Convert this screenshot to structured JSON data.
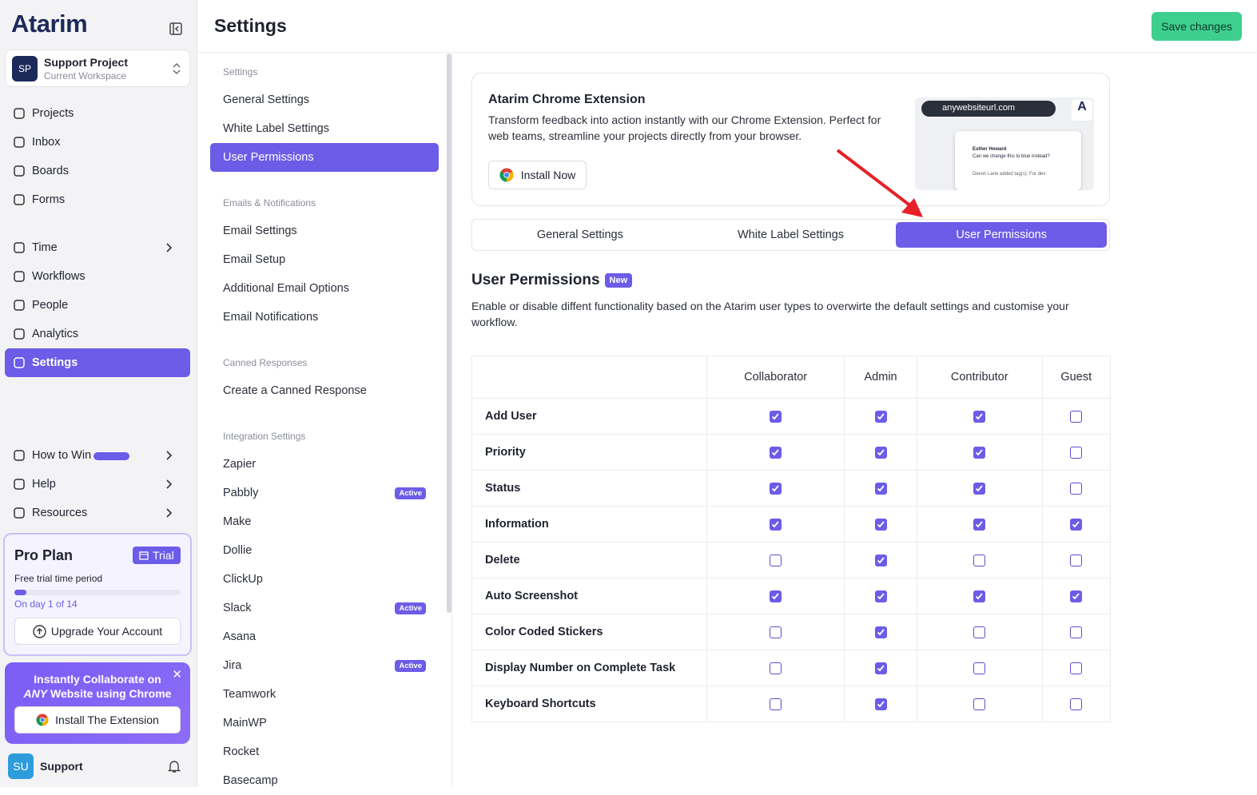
{
  "sidebar": {
    "logo": "Atarim",
    "workspace": {
      "initials": "SP",
      "name": "Support Project",
      "subtitle": "Current Workspace"
    },
    "nav_main": [
      "Projects",
      "Inbox",
      "Boards",
      "Forms"
    ],
    "nav_tools": [
      {
        "label": "Time",
        "arrow": true,
        "active": false
      },
      {
        "label": "Workflows",
        "arrow": false,
        "active": false
      },
      {
        "label": "People",
        "arrow": false,
        "active": false
      },
      {
        "label": "Analytics",
        "arrow": false,
        "active": false
      },
      {
        "label": "Settings",
        "arrow": false,
        "active": true
      }
    ],
    "nav_help": [
      "How to Win",
      "Help",
      "Resources"
    ],
    "plan": {
      "title": "Pro Plan",
      "badge": "Trial",
      "subtitle": "Free trial time period",
      "progress": "On day 1 of 14",
      "button": "Upgrade Your Account"
    },
    "promo": {
      "line1": "Instantly Collaborate on",
      "emphasis": "ANY",
      "line2": "Website using Chrome",
      "button": "Install The Extension"
    },
    "user": {
      "initials": "SU",
      "name": "Support"
    }
  },
  "header": {
    "title": "Settings",
    "button": "Save changes"
  },
  "settings_menu": [
    {
      "heading": "Settings",
      "items": [
        {
          "label": "General Settings"
        },
        {
          "label": "White Label Settings"
        },
        {
          "label": "User Permissions",
          "active": true
        }
      ]
    },
    {
      "heading": "Emails & Notifications",
      "items": [
        {
          "label": "Email Settings"
        },
        {
          "label": "Email Setup"
        },
        {
          "label": "Additional Email Options"
        },
        {
          "label": "Email Notifications"
        }
      ]
    },
    {
      "heading": "Canned Responses",
      "items": [
        {
          "label": "Create a Canned Response"
        }
      ]
    },
    {
      "heading": "Integration Settings",
      "items": [
        {
          "label": "Zapier"
        },
        {
          "label": "Pabbly",
          "badge": "Active"
        },
        {
          "label": "Make"
        },
        {
          "label": "Dollie"
        },
        {
          "label": "ClickUp"
        },
        {
          "label": "Slack",
          "badge": "Active"
        },
        {
          "label": "Asana"
        },
        {
          "label": "Jira",
          "badge": "Active"
        },
        {
          "label": "Teamwork"
        },
        {
          "label": "MainWP"
        },
        {
          "label": "Rocket"
        },
        {
          "label": "Basecamp"
        }
      ]
    }
  ],
  "extension": {
    "title": "Atarim Chrome Extension",
    "text": "Transform feedback into action instantly with our Chrome Extension. Perfect for web teams, streamline your projects directly from your browser.",
    "button": "Install Now",
    "preview": {
      "url": "anywebsiteurl.com",
      "author": "Esther Howard",
      "comment": "Can we change this to blue instead?",
      "activity": "Devon Lane added tag(s): For dev"
    }
  },
  "tabs": [
    {
      "label": "General Settings",
      "active": false
    },
    {
      "label": "White Label Settings",
      "active": false
    },
    {
      "label": "User Permissions",
      "active": true
    }
  ],
  "permissions": {
    "title": "User Permissions",
    "badge": "New",
    "description": "Enable or disable diffent functionality based on the Atarim user types to overwirte the default settings and customise your workflow.",
    "columns": [
      "Collaborator",
      "Admin",
      "Contributor",
      "Guest"
    ],
    "rows": [
      {
        "label": "Add User",
        "checked": [
          true,
          true,
          true,
          false
        ]
      },
      {
        "label": "Priority",
        "checked": [
          true,
          true,
          true,
          false
        ]
      },
      {
        "label": "Status",
        "checked": [
          true,
          true,
          true,
          false
        ]
      },
      {
        "label": "Information",
        "checked": [
          true,
          true,
          true,
          true
        ]
      },
      {
        "label": "Delete",
        "checked": [
          false,
          true,
          false,
          false
        ]
      },
      {
        "label": "Auto Screenshot",
        "checked": [
          true,
          true,
          true,
          true
        ]
      },
      {
        "label": "Color Coded Stickers",
        "checked": [
          false,
          true,
          false,
          false
        ]
      },
      {
        "label": "Display Number on Complete Task",
        "checked": [
          false,
          true,
          false,
          false
        ]
      },
      {
        "label": "Keyboard Shortcuts",
        "checked": [
          false,
          true,
          false,
          false
        ]
      }
    ]
  }
}
